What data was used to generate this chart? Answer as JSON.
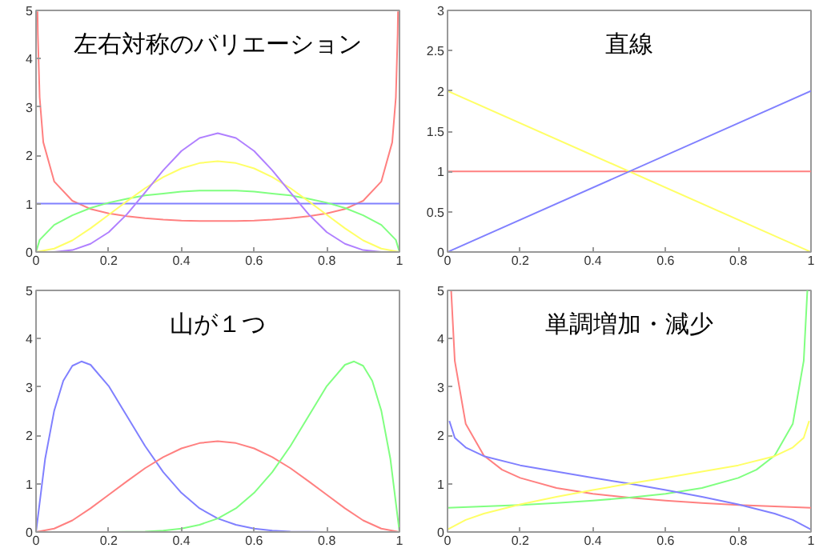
{
  "chart_data": [
    {
      "type": "line",
      "title": "左右対称のバリエーション",
      "xlim": [
        0,
        1
      ],
      "ylim": [
        0,
        5
      ],
      "xticks": [
        0,
        {
          "value": 0.2,
          "label": "0.2"
        },
        {
          "value": 0.4,
          "label": "0.4"
        },
        {
          "value": 0.6,
          "label": "0.6"
        },
        {
          "value": 0.8,
          "label": "0.8"
        },
        1
      ],
      "yticks": [
        0,
        1,
        2,
        3,
        4,
        5
      ],
      "grid": false,
      "series": [
        {
          "color": "#ff8080",
          "x": [
            0.0041,
            0.005,
            0.01,
            0.02,
            0.05,
            0.1,
            0.15,
            0.2,
            0.25,
            0.3,
            0.35,
            0.4,
            0.45,
            0.5,
            0.55,
            0.6,
            0.65,
            0.7,
            0.75,
            0.8,
            0.85,
            0.9,
            0.95,
            0.98,
            0.99,
            0.995,
            0.9959
          ],
          "values": [
            4.98,
            4.51,
            3.2,
            2.27,
            1.46,
            1.06,
            0.89,
            0.8,
            0.74,
            0.7,
            0.67,
            0.65,
            0.64,
            0.64,
            0.64,
            0.65,
            0.67,
            0.7,
            0.74,
            0.8,
            0.89,
            1.06,
            1.46,
            2.27,
            3.2,
            4.51,
            4.98
          ]
        },
        {
          "color": "#8080ff",
          "x": [
            0,
            1
          ],
          "values": [
            1,
            1
          ]
        },
        {
          "color": "#80ff80",
          "x": [
            0,
            0.01,
            0.05,
            0.1,
            0.15,
            0.2,
            0.25,
            0.3,
            0.35,
            0.4,
            0.45,
            0.5,
            0.55,
            0.6,
            0.65,
            0.7,
            0.75,
            0.8,
            0.85,
            0.9,
            0.95,
            0.99,
            1
          ],
          "values": [
            0,
            0.25,
            0.56,
            0.76,
            0.91,
            1.02,
            1.1,
            1.17,
            1.21,
            1.25,
            1.27,
            1.27,
            1.27,
            1.25,
            1.21,
            1.17,
            1.1,
            1.02,
            0.91,
            0.76,
            0.56,
            0.25,
            0
          ]
        },
        {
          "color": "#ffff66",
          "x": [
            0,
            0.05,
            0.1,
            0.15,
            0.2,
            0.25,
            0.3,
            0.35,
            0.4,
            0.45,
            0.5,
            0.55,
            0.6,
            0.65,
            0.7,
            0.75,
            0.8,
            0.85,
            0.9,
            0.95,
            1
          ],
          "values": [
            0,
            0.07,
            0.24,
            0.49,
            0.77,
            1.05,
            1.32,
            1.55,
            1.73,
            1.84,
            1.88,
            1.84,
            1.73,
            1.55,
            1.32,
            1.05,
            0.77,
            0.49,
            0.24,
            0.07,
            0
          ]
        },
        {
          "color": "#b080ff",
          "x": [
            0,
            0.05,
            0.1,
            0.15,
            0.2,
            0.25,
            0.3,
            0.35,
            0.4,
            0.45,
            0.5,
            0.55,
            0.6,
            0.65,
            0.7,
            0.75,
            0.8,
            0.85,
            0.9,
            0.95,
            1
          ],
          "values": [
            0,
            0,
            0.04,
            0.17,
            0.41,
            0.78,
            1.23,
            1.69,
            2.09,
            2.36,
            2.46,
            2.36,
            2.09,
            1.69,
            1.23,
            0.78,
            0.41,
            0.17,
            0.04,
            0,
            0
          ]
        }
      ]
    },
    {
      "type": "line",
      "title": "直線",
      "xlim": [
        0,
        1
      ],
      "ylim": [
        0,
        3
      ],
      "xticks": [
        0,
        {
          "value": 0.2,
          "label": "0.2"
        },
        {
          "value": 0.4,
          "label": "0.4"
        },
        {
          "value": 0.6,
          "label": "0.6"
        },
        {
          "value": 0.8,
          "label": "0.8"
        },
        1
      ],
      "yticks": [
        0,
        {
          "value": 0.5,
          "label": "0.5"
        },
        1,
        {
          "value": 1.5,
          "label": "1.5"
        },
        2,
        {
          "value": 2.5,
          "label": "2.5"
        },
        3
      ],
      "grid": false,
      "series": [
        {
          "color": "#ff8080",
          "x": [
            0,
            1
          ],
          "values": [
            1,
            1
          ]
        },
        {
          "color": "#ffff66",
          "x": [
            0,
            1
          ],
          "values": [
            2,
            0
          ]
        },
        {
          "color": "#8080ff",
          "x": [
            0,
            1
          ],
          "values": [
            0,
            2
          ]
        }
      ]
    },
    {
      "type": "line",
      "title": "山が１つ",
      "xlim": [
        0,
        1
      ],
      "ylim": [
        0,
        5
      ],
      "xticks": [
        0,
        {
          "value": 0.2,
          "label": "0.2"
        },
        {
          "value": 0.4,
          "label": "0.4"
        },
        {
          "value": 0.6,
          "label": "0.6"
        },
        {
          "value": 0.8,
          "label": "0.8"
        },
        1
      ],
      "yticks": [
        0,
        1,
        2,
        3,
        4,
        5
      ],
      "grid": false,
      "series": [
        {
          "color": "#8080ff",
          "x": [
            0,
            0.025,
            0.05,
            0.075,
            0.1,
            0.125,
            0.15,
            0.2,
            0.25,
            0.3,
            0.35,
            0.4,
            0.45,
            0.5,
            0.55,
            0.6,
            0.65,
            0.7,
            0.8
          ],
          "values": [
            0,
            1.51,
            2.51,
            3.13,
            3.44,
            3.53,
            3.46,
            3.02,
            2.4,
            1.78,
            1.24,
            0.81,
            0.49,
            0.28,
            0.15,
            0.07,
            0.03,
            0.01,
            0
          ]
        },
        {
          "color": "#ff8080",
          "x": [
            0,
            0.05,
            0.1,
            0.15,
            0.2,
            0.25,
            0.3,
            0.35,
            0.4,
            0.45,
            0.5,
            0.55,
            0.6,
            0.65,
            0.7,
            0.75,
            0.8,
            0.85,
            0.9,
            0.95,
            1
          ],
          "values": [
            0,
            0.07,
            0.24,
            0.49,
            0.77,
            1.05,
            1.32,
            1.55,
            1.73,
            1.84,
            1.88,
            1.84,
            1.73,
            1.55,
            1.32,
            1.05,
            0.77,
            0.49,
            0.24,
            0.07,
            0
          ]
        },
        {
          "color": "#80ff80",
          "x": [
            0.2,
            0.3,
            0.35,
            0.4,
            0.45,
            0.5,
            0.55,
            0.6,
            0.65,
            0.7,
            0.75,
            0.8,
            0.85,
            0.875,
            0.9,
            0.925,
            0.95,
            0.975,
            1
          ],
          "values": [
            0,
            0.01,
            0.03,
            0.07,
            0.15,
            0.28,
            0.49,
            0.81,
            1.24,
            1.78,
            2.4,
            3.02,
            3.46,
            3.53,
            3.44,
            3.13,
            2.51,
            1.51,
            0
          ]
        }
      ]
    },
    {
      "type": "line",
      "title": "単調増加・減少",
      "xlim": [
        0,
        1
      ],
      "ylim": [
        0,
        5
      ],
      "xticks": [
        0,
        {
          "value": 0.2,
          "label": "0.2"
        },
        {
          "value": 0.4,
          "label": "0.4"
        },
        {
          "value": 0.6,
          "label": "0.6"
        },
        {
          "value": 0.8,
          "label": "0.8"
        },
        1
      ],
      "yticks": [
        0,
        1,
        2,
        3,
        4,
        5
      ],
      "grid": false,
      "series": [
        {
          "color": "#ff8080",
          "x": [
            0.01,
            0.02,
            0.05,
            0.1,
            0.15,
            0.2,
            0.3,
            0.4,
            0.5,
            0.6,
            0.7,
            0.8,
            0.9,
            1
          ],
          "values": [
            5,
            3.54,
            2.24,
            1.58,
            1.29,
            1.12,
            0.91,
            0.79,
            0.71,
            0.65,
            0.6,
            0.56,
            0.53,
            0.5
          ]
        },
        {
          "color": "#80ff80",
          "x": [
            0,
            0.1,
            0.2,
            0.3,
            0.4,
            0.5,
            0.6,
            0.7,
            0.8,
            0.85,
            0.9,
            0.95,
            0.98,
            0.99
          ],
          "values": [
            0.5,
            0.53,
            0.56,
            0.6,
            0.65,
            0.71,
            0.79,
            0.91,
            1.12,
            1.29,
            1.58,
            2.24,
            3.54,
            5
          ]
        },
        {
          "color": "#8080ff",
          "x": [
            0.005,
            0.02,
            0.05,
            0.1,
            0.2,
            0.3,
            0.4,
            0.5,
            0.6,
            0.7,
            0.8,
            0.9,
            0.95,
            1
          ],
          "values": [
            2.3,
            1.95,
            1.75,
            1.57,
            1.38,
            1.25,
            1.12,
            1,
            0.87,
            0.73,
            0.57,
            0.38,
            0.25,
            0.05
          ]
        },
        {
          "color": "#ffff66",
          "x": [
            0,
            0.05,
            0.1,
            0.2,
            0.3,
            0.4,
            0.5,
            0.6,
            0.7,
            0.8,
            0.9,
            0.95,
            0.98,
            0.995
          ],
          "values": [
            0.05,
            0.25,
            0.38,
            0.57,
            0.73,
            0.87,
            1,
            1.12,
            1.25,
            1.38,
            1.57,
            1.75,
            1.95,
            2.3
          ]
        }
      ]
    }
  ]
}
